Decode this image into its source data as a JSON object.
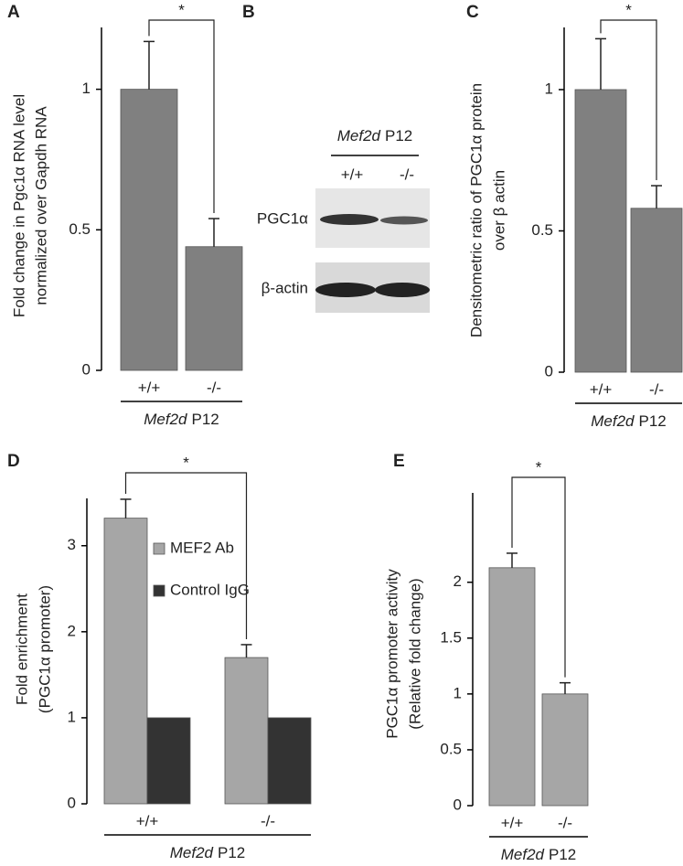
{
  "chart_data": [
    {
      "panel": "A",
      "type": "bar",
      "categories": [
        "+/+",
        "-/-"
      ],
      "values": [
        1,
        0.44
      ],
      "errors": [
        0.17,
        0.1
      ],
      "color": "#808080",
      "ylim": [
        0,
        1.22
      ],
      "yticks": [
        0,
        0.5,
        1
      ],
      "ylabel": [
        "Fold change in Pgc1α RNA level",
        "normalized over Gapdh RNA"
      ],
      "group_label": [
        "Mef2d",
        "P12"
      ],
      "significance": "*"
    },
    {
      "panel": "C",
      "type": "bar",
      "categories": [
        "+/+",
        "-/-"
      ],
      "values": [
        1,
        0.58
      ],
      "errors": [
        0.18,
        0.08
      ],
      "color": "#808080",
      "ylim": [
        0,
        1.22
      ],
      "yticks": [
        0,
        0.5,
        1
      ],
      "ylabel": [
        "Densitometric ratio of PGC1α protein",
        "over β actin"
      ],
      "group_label": [
        "Mef2d",
        "P12"
      ],
      "significance": "*"
    },
    {
      "panel": "D",
      "type": "bar",
      "categories": [
        "+/+",
        "-/-"
      ],
      "series": [
        {
          "name": "MEF2 Ab",
          "color": "#a6a6a6",
          "values": [
            3.32,
            1.7
          ],
          "errors": [
            0.22,
            0.15
          ]
        },
        {
          "name": "Control IgG",
          "color": "#333333",
          "values": [
            1,
            1
          ]
        }
      ],
      "ylim": [
        0,
        3.55
      ],
      "yticks": [
        0,
        1,
        2,
        3
      ],
      "ylabel": [
        "Fold enrichment",
        "(PGC1α promoter)"
      ],
      "group_label": [
        "Mef2d",
        "P12"
      ],
      "significance": "*"
    },
    {
      "panel": "E",
      "type": "bar",
      "categories": [
        "+/+",
        "-/-"
      ],
      "values": [
        2.13,
        1
      ],
      "errors": [
        0.13,
        0.1
      ],
      "color": "#a6a6a6",
      "ylim": [
        0,
        2.8
      ],
      "yticks": [
        0,
        0.5,
        1,
        1.5,
        2
      ],
      "ylabel": [
        "PGC1α promoter activity",
        "(Relative fold change)"
      ],
      "group_label": [
        "Mef2d",
        "P12"
      ],
      "significance": "*"
    }
  ],
  "blot": {
    "panel": "B",
    "group_label": [
      "Mef2d",
      "P12"
    ],
    "lanes": [
      "+/+",
      "-/-"
    ],
    "rows": [
      "PGC1α",
      "β-actin"
    ]
  }
}
